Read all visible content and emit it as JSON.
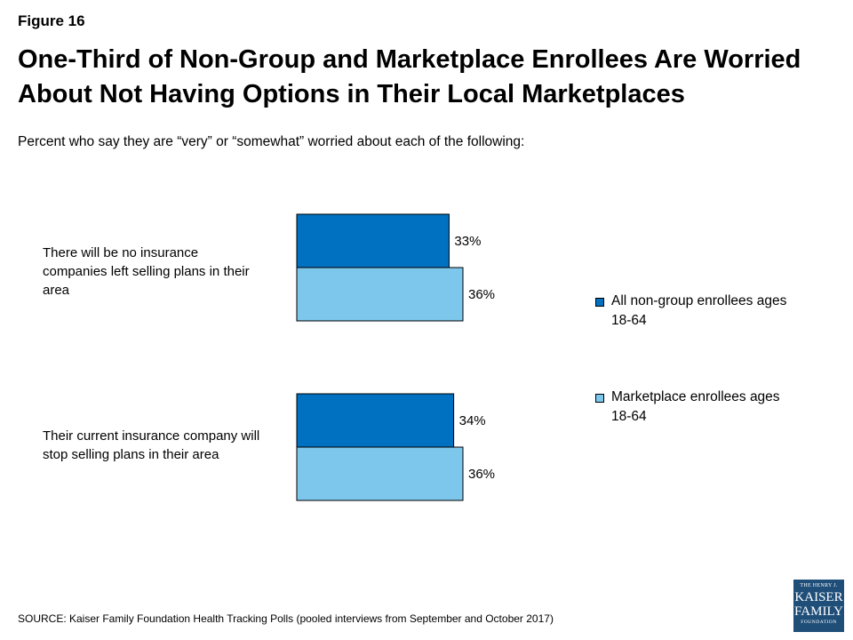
{
  "header": {
    "figure_label": "Figure 16",
    "title": "One-Third of Non-Group and Marketplace Enrollees Are Worried About Not Having Options in Their Local Marketplaces",
    "subtitle": "Percent who say they are “very” or “somewhat” worried about each of the following:"
  },
  "chart_data": {
    "type": "bar",
    "orientation": "horizontal",
    "categories": [
      "There will be no insurance companies left selling plans in their area",
      "Their current insurance company will stop selling plans in their area"
    ],
    "series": [
      {
        "name": "All non-group enrollees ages 18-64",
        "values": [
          33,
          34
        ],
        "color": "#0070c0"
      },
      {
        "name": "Marketplace enrollees ages 18-64",
        "values": [
          36,
          36
        ],
        "color": "#7dc6ec"
      }
    ],
    "data_labels": [
      [
        "33%",
        "34%"
      ],
      [
        "36%",
        "36%"
      ]
    ],
    "legend_position": "right",
    "grid": false,
    "xlim": [
      0,
      100
    ]
  },
  "legend": [
    {
      "text": "All non-group enrollees ages 18-64",
      "color": "#0070c0"
    },
    {
      "text": "Marketplace enrollees ages 18-64",
      "color": "#7dc6ec"
    }
  ],
  "source": "SOURCE: Kaiser Family Foundation Health Tracking Polls (pooled interviews from September and October 2017)",
  "logo": {
    "line1": "THE HENRY J.",
    "line2": "KAISER",
    "line3": "FAMILY",
    "line4": "FOUNDATION"
  }
}
